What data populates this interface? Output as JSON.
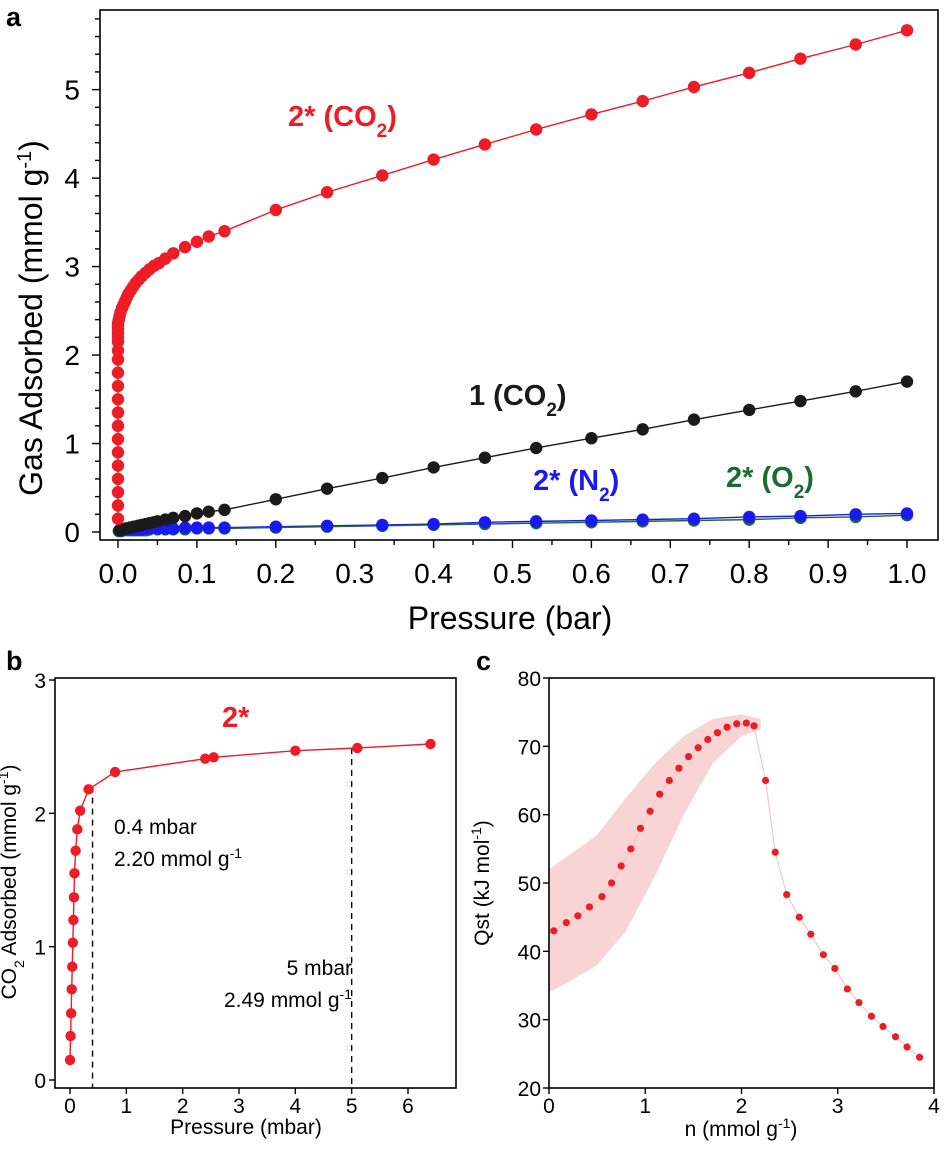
{
  "panels": {
    "a": "a",
    "b": "b",
    "c": "c"
  },
  "colors": {
    "co2_2star": "#ee1c25",
    "co2_1": "#1a1a1a",
    "n2": "#1a1af0",
    "o2": "#1b6b33",
    "band": "#f7c5c7"
  },
  "chart_data": [
    {
      "type": "scatter",
      "panel": "a",
      "xlabel": "Pressure (bar)",
      "ylabel": "Gas Adsorbed (mmol g-1)",
      "ylabel_main": "Gas Adsorbed (mmol g",
      "ylabel_sup": "-1",
      "ylabel_close": ")",
      "xlim": [
        0,
        1.0
      ],
      "ylim": [
        0,
        5.9
      ],
      "xticks": [
        "0.0",
        "0.1",
        "0.2",
        "0.3",
        "0.4",
        "0.5",
        "0.6",
        "0.7",
        "0.8",
        "0.9",
        "1.0"
      ],
      "yticks": [
        "0",
        "1",
        "2",
        "3",
        "4",
        "5"
      ],
      "series": [
        {
          "name": "2* (CO₂)",
          "color": "#ee1c25",
          "x": [
            0,
            0,
            0,
            0,
            0,
            0,
            0,
            0,
            0,
            0,
            0,
            0,
            0,
            0,
            0,
            0,
            0,
            0,
            0,
            0,
            0.001,
            0.002,
            0.003,
            0.005,
            0.007,
            0.009,
            0.011,
            0.013,
            0.016,
            0.019,
            0.022,
            0.026,
            0.03,
            0.035,
            0.04,
            0.046,
            0.052,
            0.06,
            0.07,
            0.085,
            0.1,
            0.115,
            0.135,
            0.2,
            0.265,
            0.335,
            0.4,
            0.465,
            0.53,
            0.6,
            0.665,
            0.73,
            0.8,
            0.865,
            0.935,
            1.0
          ],
          "y": [
            0.15,
            0.3,
            0.45,
            0.6,
            0.75,
            0.9,
            1.05,
            1.2,
            1.35,
            1.5,
            1.65,
            1.8,
            1.95,
            2.05,
            2.15,
            2.2,
            2.25,
            2.3,
            2.33,
            2.36,
            2.4,
            2.44,
            2.48,
            2.53,
            2.57,
            2.61,
            2.65,
            2.69,
            2.73,
            2.77,
            2.81,
            2.85,
            2.89,
            2.93,
            2.97,
            3.01,
            3.04,
            3.09,
            3.15,
            3.22,
            3.28,
            3.34,
            3.4,
            3.64,
            3.84,
            4.03,
            4.21,
            4.38,
            4.55,
            4.72,
            4.87,
            5.03,
            5.19,
            5.35,
            5.51,
            5.67
          ]
        },
        {
          "name": "1 (CO₂)",
          "color": "#1a1a1a",
          "x": [
            0.002,
            0.006,
            0.01,
            0.015,
            0.02,
            0.025,
            0.03,
            0.035,
            0.04,
            0.045,
            0.05,
            0.06,
            0.07,
            0.085,
            0.1,
            0.115,
            0.135,
            0.2,
            0.265,
            0.335,
            0.4,
            0.465,
            0.53,
            0.6,
            0.665,
            0.73,
            0.8,
            0.865,
            0.935,
            1.0
          ],
          "y": [
            0.02,
            0.03,
            0.04,
            0.05,
            0.06,
            0.07,
            0.08,
            0.09,
            0.1,
            0.11,
            0.12,
            0.14,
            0.16,
            0.18,
            0.21,
            0.23,
            0.25,
            0.37,
            0.49,
            0.61,
            0.73,
            0.84,
            0.95,
            1.06,
            1.16,
            1.27,
            1.38,
            1.48,
            1.59,
            1.7
          ]
        },
        {
          "name": "2* (N₂)",
          "color": "#1a1af0",
          "x": [
            0.002,
            0.006,
            0.01,
            0.015,
            0.02,
            0.025,
            0.03,
            0.035,
            0.04,
            0.05,
            0.06,
            0.07,
            0.085,
            0.1,
            0.115,
            0.135,
            0.2,
            0.265,
            0.335,
            0.4,
            0.465,
            0.53,
            0.6,
            0.665,
            0.73,
            0.8,
            0.865,
            0.935,
            1.0
          ],
          "y": [
            0.02,
            0.02,
            0.03,
            0.03,
            0.03,
            0.03,
            0.03,
            0.04,
            0.04,
            0.04,
            0.04,
            0.04,
            0.05,
            0.05,
            0.05,
            0.05,
            0.06,
            0.07,
            0.08,
            0.09,
            0.11,
            0.12,
            0.13,
            0.14,
            0.15,
            0.17,
            0.18,
            0.2,
            0.21
          ]
        },
        {
          "name": "2* (O₂)",
          "color": "#1b6b33",
          "x": [
            0.001,
            0.004,
            0.008,
            0.012,
            0.016,
            0.02,
            0.024,
            0.028,
            0.032,
            0.036,
            0.04,
            0.05,
            0.06,
            0.07,
            0.085,
            0.1,
            0.115,
            0.135,
            0.2,
            0.265,
            0.335,
            0.4,
            0.465,
            0.53,
            0.6,
            0.665,
            0.73,
            0.8,
            0.865,
            0.935,
            1.0
          ],
          "y": [
            0.01,
            0.01,
            0.02,
            0.02,
            0.02,
            0.02,
            0.02,
            0.02,
            0.02,
            0.02,
            0.03,
            0.03,
            0.03,
            0.03,
            0.03,
            0.04,
            0.04,
            0.04,
            0.05,
            0.06,
            0.07,
            0.08,
            0.09,
            0.1,
            0.11,
            0.12,
            0.13,
            0.14,
            0.16,
            0.17,
            0.19
          ]
        }
      ],
      "labels": [
        {
          "text": "2* (CO",
          "sub": "2",
          "close": ")",
          "color": "#ee1c25"
        },
        {
          "text": "1 (CO",
          "sub": "2",
          "close": ")",
          "color": "#1a1a1a"
        },
        {
          "text": "2* (N",
          "sub": "2",
          "close": ")",
          "color": "#1a1af0"
        },
        {
          "text": "2* (O",
          "sub": "2",
          "close": ")",
          "color": "#1b6b33"
        }
      ]
    },
    {
      "type": "scatter",
      "panel": "b",
      "xlabel": "Pressure (mbar)",
      "ylabel": "CO₂ Adsorbed (mmol g-1)",
      "ylabel_pre": "CO",
      "ylabel_sub": "2",
      "ylabel_main": " Adsorbed (mmol g",
      "ylabel_sup": "-1",
      "ylabel_close": ")",
      "xlim": [
        -0.2,
        6.8
      ],
      "ylim": [
        -0.05,
        3.0
      ],
      "xticks": [
        "0",
        "1",
        "2",
        "3",
        "4",
        "5",
        "6"
      ],
      "yticks": [
        "0",
        "1",
        "2",
        "3"
      ],
      "series": [
        {
          "name": "2*",
          "color": "#ee1c25",
          "x": [
            0.0,
            0.01,
            0.02,
            0.03,
            0.04,
            0.05,
            0.06,
            0.07,
            0.08,
            0.1,
            0.13,
            0.18,
            0.33,
            0.8,
            2.4,
            2.55,
            4.0,
            5.1,
            6.4
          ],
          "y": [
            0.15,
            0.33,
            0.5,
            0.68,
            0.85,
            1.03,
            1.2,
            1.37,
            1.55,
            1.72,
            1.88,
            2.02,
            2.18,
            2.31,
            2.41,
            2.42,
            2.47,
            2.49,
            2.52
          ]
        }
      ],
      "series_label": "2*",
      "annotations": [
        {
          "x": 0.4,
          "line1": "0.4 mbar",
          "line2_main": "2.20 mmol g",
          "line2_sup": "-1"
        },
        {
          "x": 5.0,
          "line1": "5 mbar",
          "line2_main": "2.49 mmol g",
          "line2_sup": "-1"
        }
      ]
    },
    {
      "type": "scatter",
      "panel": "c",
      "xlabel": "n (mmol g-1)",
      "xlabel_main": "n (mmol g",
      "xlabel_sup": "-1",
      "xlabel_close": ")",
      "ylabel": "Qst (kJ mol-1)",
      "ylabel_main": "Qst (kJ mol",
      "ylabel_sup": "-1",
      "ylabel_close": ")",
      "xlim": [
        0,
        4
      ],
      "ylim": [
        20,
        80
      ],
      "xticks": [
        "0",
        "1",
        "2",
        "3",
        "4"
      ],
      "yticks": [
        "20",
        "30",
        "40",
        "50",
        "60",
        "70",
        "80"
      ],
      "series": [
        {
          "name": "Qst",
          "color": "#ee1c25",
          "x": [
            0.05,
            0.18,
            0.3,
            0.42,
            0.55,
            0.65,
            0.75,
            0.85,
            0.95,
            1.05,
            1.15,
            1.25,
            1.35,
            1.45,
            1.55,
            1.65,
            1.75,
            1.85,
            1.95,
            2.05,
            2.13,
            2.25,
            2.35,
            2.47,
            2.6,
            2.72,
            2.85,
            2.97,
            3.1,
            3.22,
            3.35,
            3.47,
            3.6,
            3.72,
            3.85
          ],
          "y": [
            43.0,
            44.2,
            45.2,
            46.5,
            48.0,
            50.0,
            52.5,
            55.0,
            58.0,
            60.5,
            63.0,
            65.0,
            66.8,
            68.5,
            69.8,
            71.0,
            72.0,
            72.8,
            73.3,
            73.4,
            73.0,
            65.0,
            54.5,
            48.3,
            45.0,
            42.5,
            39.5,
            37.5,
            34.5,
            32.5,
            30.5,
            29.0,
            27.5,
            26.0,
            24.5
          ]
        }
      ],
      "band": {
        "x": [
          0,
          0.2,
          0.5,
          0.8,
          1.1,
          1.4,
          1.7,
          2.0,
          2.2
        ],
        "upper": [
          52,
          54,
          57,
          62.5,
          67.5,
          71.5,
          74.0,
          74.7,
          74.0
        ],
        "lower": [
          34,
          35.5,
          38,
          43,
          51,
          60,
          67.5,
          71.5,
          72.5
        ]
      }
    }
  ]
}
